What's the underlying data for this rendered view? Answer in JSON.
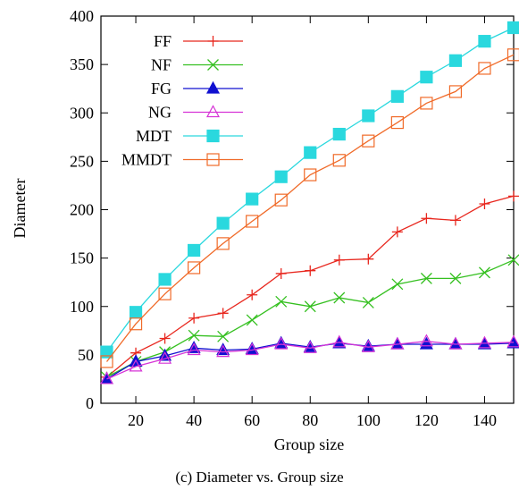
{
  "caption": "(c) Diameter vs. Group size",
  "chart_data": {
    "type": "line",
    "title": "",
    "xlabel": "Group size",
    "ylabel": "Diameter",
    "xlim": [
      8,
      150
    ],
    "ylim": [
      0,
      400
    ],
    "xticks": [
      20,
      40,
      60,
      80,
      100,
      120,
      140
    ],
    "yticks": [
      0,
      50,
      100,
      150,
      200,
      250,
      300,
      350,
      400
    ],
    "grid": false,
    "legend_position": "top-left",
    "x": [
      10,
      20,
      30,
      40,
      50,
      60,
      70,
      80,
      90,
      100,
      110,
      120,
      130,
      140,
      150
    ],
    "series": [
      {
        "name": "FF",
        "color": "#e8271e",
        "marker": "plus",
        "filled": false,
        "values": [
          27,
          52,
          67,
          88,
          93,
          112,
          134,
          137,
          148,
          149,
          177,
          191,
          189,
          206,
          214
        ]
      },
      {
        "name": "NF",
        "color": "#35c020",
        "marker": "x",
        "filled": false,
        "values": [
          27,
          43,
          53,
          70,
          69,
          86,
          105,
          100,
          109,
          104,
          123,
          129,
          129,
          135,
          148
        ]
      },
      {
        "name": "FG",
        "color": "#1010d0",
        "marker": "triangle",
        "filled": true,
        "values": [
          25,
          43,
          49,
          57,
          55,
          56,
          62,
          58,
          62,
          59,
          61,
          61,
          61,
          61,
          62
        ]
      },
      {
        "name": "NG",
        "color": "#d633d6",
        "marker": "triangle",
        "filled": false,
        "values": [
          25,
          38,
          46,
          55,
          53,
          55,
          61,
          57,
          63,
          58,
          61,
          64,
          61,
          62,
          63
        ]
      },
      {
        "name": "MDT",
        "color": "#2ad8de",
        "marker": "square",
        "filled": true,
        "values": [
          53,
          94,
          128,
          158,
          186,
          211,
          234,
          259,
          278,
          297,
          317,
          337,
          354,
          374,
          388
        ]
      },
      {
        "name": "MMDT",
        "color": "#f06a28",
        "marker": "square",
        "filled": false,
        "values": [
          43,
          82,
          113,
          140,
          165,
          188,
          210,
          236,
          251,
          271,
          290,
          310,
          322,
          346,
          360
        ]
      }
    ]
  }
}
